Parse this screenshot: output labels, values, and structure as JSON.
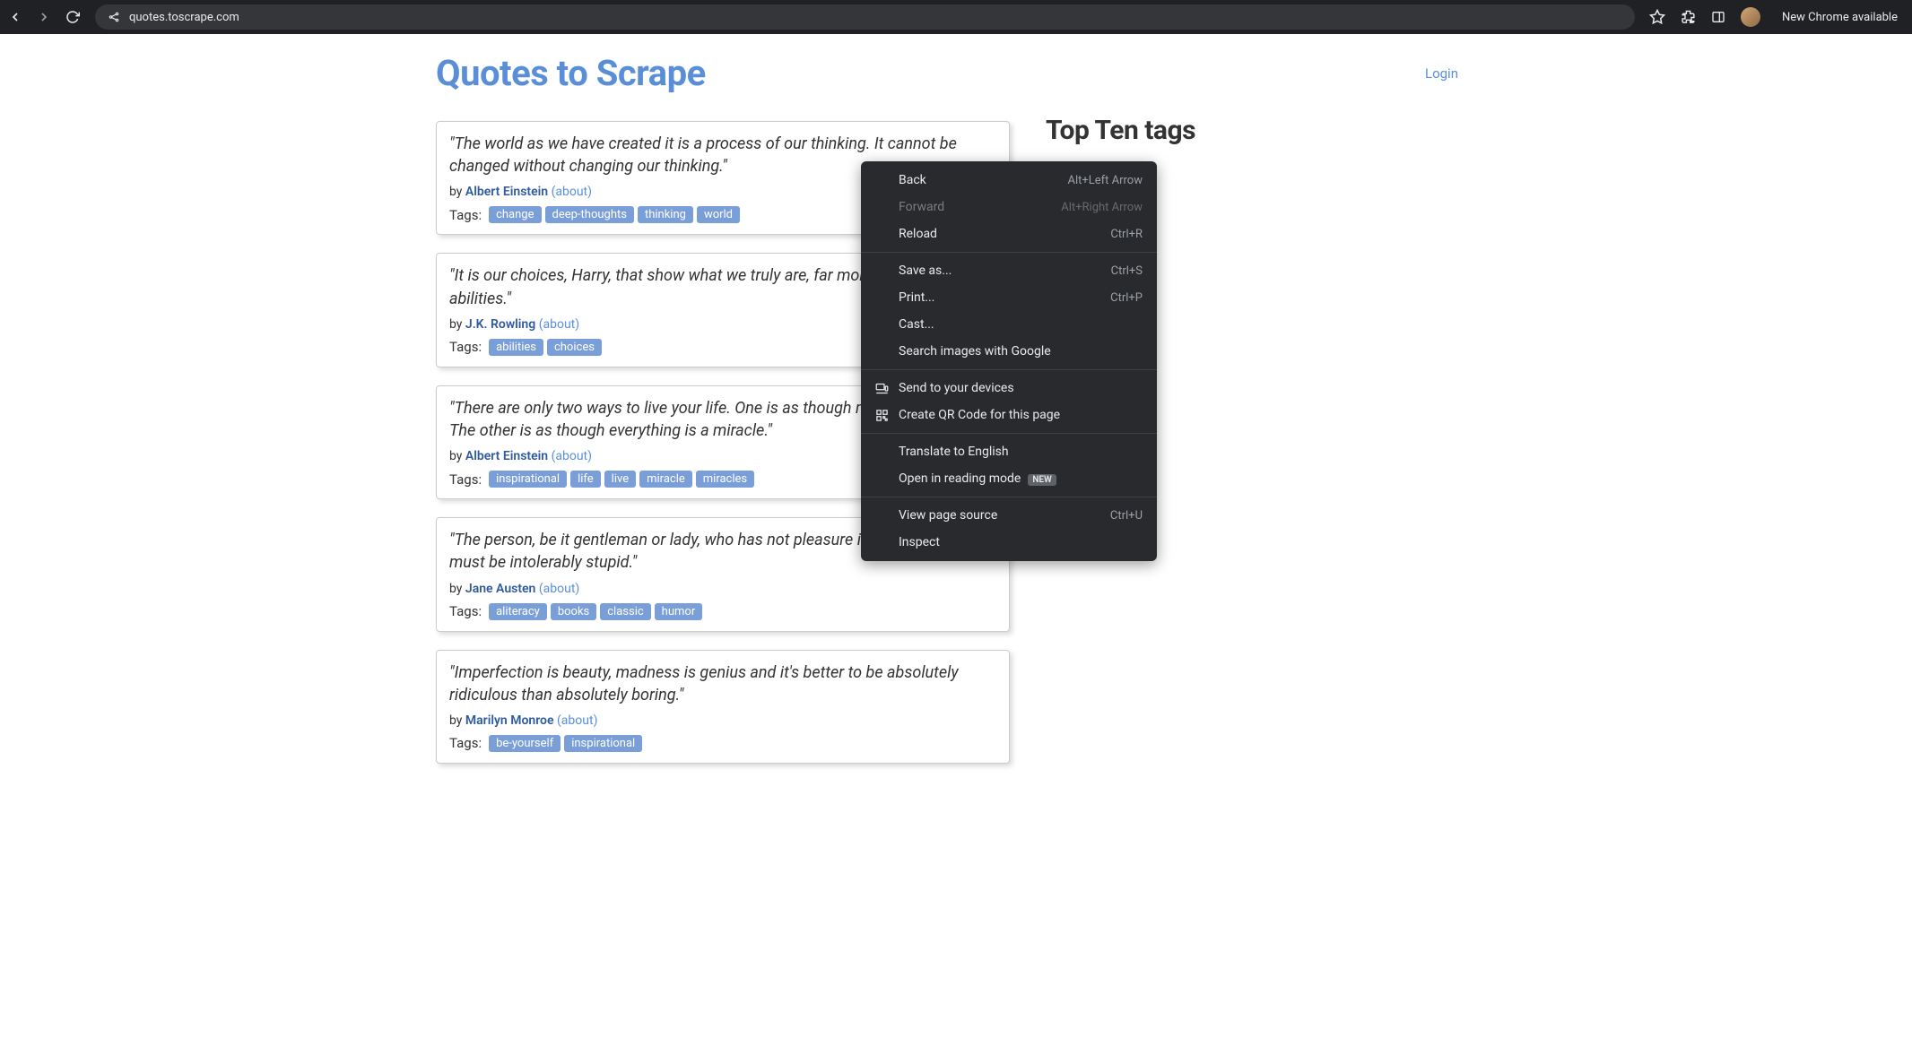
{
  "browser": {
    "url": "quotes.toscrape.com",
    "banner": "New Chrome available"
  },
  "page": {
    "title": "Quotes to Scrape",
    "login_label": "Login",
    "top_tags_title": "Top Ten tags",
    "by_label": "by ",
    "about_label": "(about)",
    "tags_label": "Tags:"
  },
  "quotes": [
    {
      "text": "\"The world as we have created it is a process of our thinking. It cannot be changed without changing our thinking.\"",
      "author": "Albert Einstein",
      "tags": [
        "change",
        "deep-thoughts",
        "thinking",
        "world"
      ]
    },
    {
      "text": "\"It is our choices, Harry, that show what we truly are, far more than our abilities.\"",
      "author": "J.K. Rowling",
      "tags": [
        "abilities",
        "choices"
      ]
    },
    {
      "text": "\"There are only two ways to live your life. One is as though nothing is a miracle. The other is as though everything is a miracle.\"",
      "author": "Albert Einstein",
      "tags": [
        "inspirational",
        "life",
        "live",
        "miracle",
        "miracles"
      ]
    },
    {
      "text": "\"The person, be it gentleman or lady, who has not pleasure in a good novel, must be intolerably stupid.\"",
      "author": "Jane Austen",
      "tags": [
        "aliteracy",
        "books",
        "classic",
        "humor"
      ]
    },
    {
      "text": "\"Imperfection is beauty, madness is genius and it's better to be absolutely ridiculous than absolutely boring.\"",
      "author": "Marilyn Monroe",
      "tags": [
        "be-yourself",
        "inspirational"
      ]
    }
  ],
  "context_menu": {
    "groups": [
      [
        {
          "label": "Back",
          "shortcut": "Alt+Left Arrow",
          "disabled": false,
          "icon": null
        },
        {
          "label": "Forward",
          "shortcut": "Alt+Right Arrow",
          "disabled": true,
          "icon": null
        },
        {
          "label": "Reload",
          "shortcut": "Ctrl+R",
          "disabled": false,
          "icon": null
        }
      ],
      [
        {
          "label": "Save as...",
          "shortcut": "Ctrl+S",
          "disabled": false,
          "icon": null
        },
        {
          "label": "Print...",
          "shortcut": "Ctrl+P",
          "disabled": false,
          "icon": null
        },
        {
          "label": "Cast...",
          "shortcut": "",
          "disabled": false,
          "icon": null
        },
        {
          "label": "Search images with Google",
          "shortcut": "",
          "disabled": false,
          "icon": null
        }
      ],
      [
        {
          "label": "Send to your devices",
          "shortcut": "",
          "disabled": false,
          "icon": "devices"
        },
        {
          "label": "Create QR Code for this page",
          "shortcut": "",
          "disabled": false,
          "icon": "qr"
        }
      ],
      [
        {
          "label": "Translate to English",
          "shortcut": "",
          "disabled": false,
          "icon": null
        },
        {
          "label": "Open in reading mode",
          "shortcut": "",
          "disabled": false,
          "icon": null,
          "badge": "NEW"
        }
      ],
      [
        {
          "label": "View page source",
          "shortcut": "Ctrl+U",
          "disabled": false,
          "icon": null
        },
        {
          "label": "Inspect",
          "shortcut": "",
          "disabled": false,
          "icon": null
        }
      ]
    ]
  },
  "colors": {
    "link": "#5a8fd8",
    "author": "#2e5a9c",
    "tag_bg": "#7a9ed8",
    "chrome_bg": "#202124",
    "menu_bg": "#292a2d"
  }
}
